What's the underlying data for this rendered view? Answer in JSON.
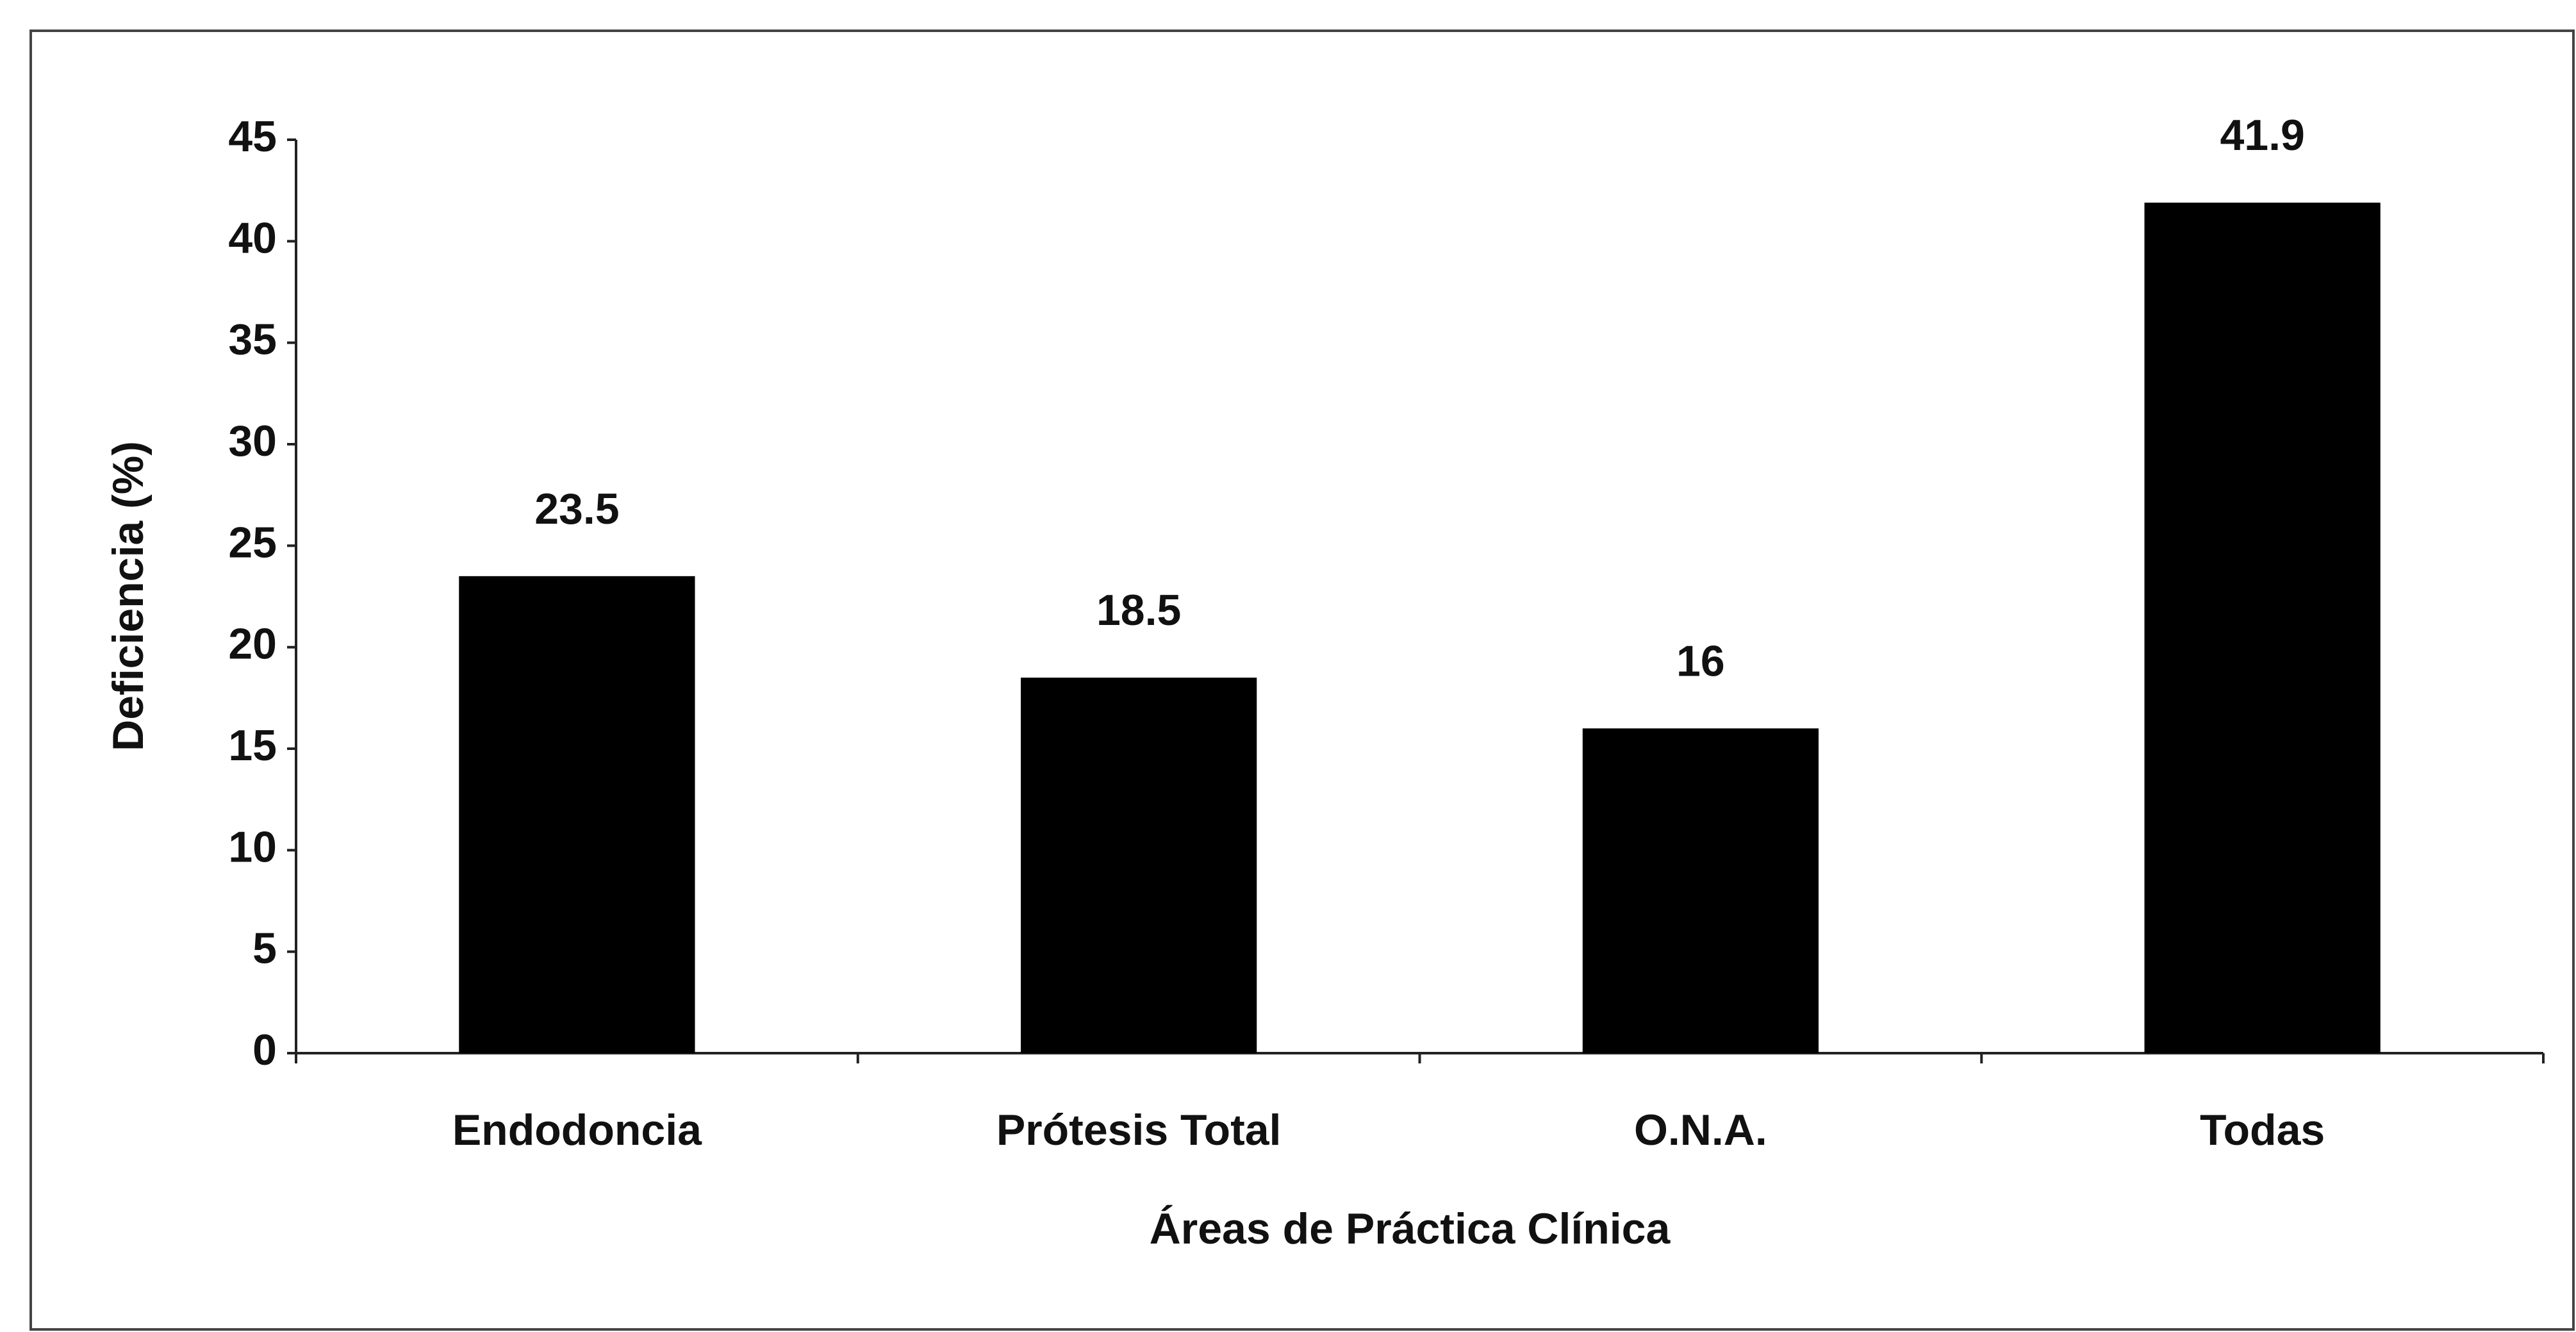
{
  "chart_data": {
    "type": "bar",
    "categories": [
      "Endodoncia",
      "Prótesis Total",
      "O.N.A.",
      "Todas"
    ],
    "values": [
      23.5,
      18.5,
      16,
      41.9
    ],
    "color": "#000000",
    "xlabel": "Áreas de Práctica Clínica",
    "ylabel": "Deficiencia (%)",
    "ylim": [
      0,
      45
    ],
    "yticks": [
      0,
      5,
      10,
      15,
      20,
      25,
      30,
      35,
      40,
      45
    ],
    "grid": false
  }
}
